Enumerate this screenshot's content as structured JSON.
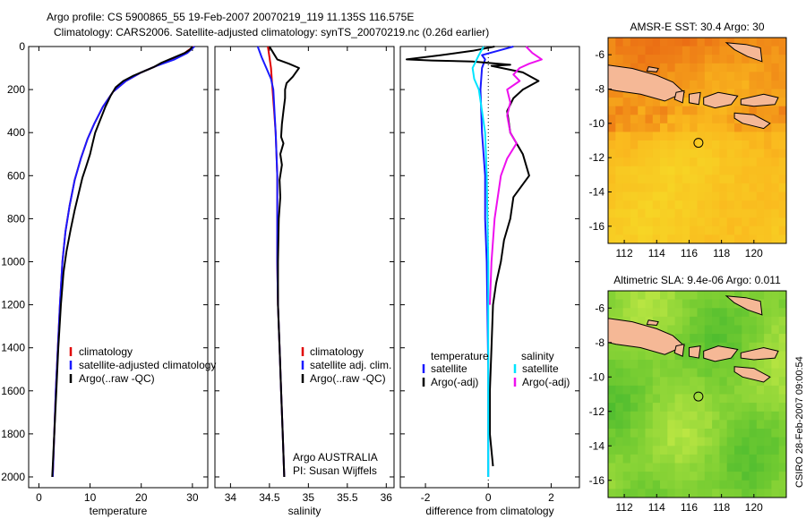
{
  "header": {
    "line1": "Argo profile: CS 5900865_55 19-Feb-2007 20070219_119 11.135S 116.575E",
    "line2": "Climatology: CARS2006. Satellite-adjusted climatology: synTS_20070219.nc (0.26d earlier)"
  },
  "side_label": "CSIRO 28-Feb-2007 09:00:54",
  "colors": {
    "red": "#e00000",
    "blue": "#1a1aff",
    "black": "#000000",
    "cyan": "#00e5ff",
    "magenta": "#ee10ee",
    "land": "#f5b896"
  },
  "chart_data": [
    {
      "type": "line",
      "id": "temperature",
      "xlabel": "temperature",
      "xlim": [
        -2,
        33
      ],
      "ylim": [
        0,
        2050
      ],
      "yticks": [
        0,
        200,
        400,
        600,
        800,
        1000,
        1200,
        1400,
        1600,
        1800,
        2000
      ],
      "xticks": [
        0,
        10,
        20,
        30
      ],
      "legend": [
        "climatology",
        "satellite-adjusted climatology",
        "Argo(..raw -QC)"
      ],
      "series": [
        {
          "name": "climatology",
          "color": "red",
          "points": [
            [
              30.2,
              0
            ],
            [
              28.5,
              30
            ],
            [
              26,
              60
            ],
            [
              23,
              90
            ],
            [
              20,
              120
            ],
            [
              17,
              160
            ],
            [
              14.5,
              210
            ],
            [
              12.5,
              280
            ],
            [
              10.8,
              360
            ],
            [
              9.5,
              430
            ],
            [
              8.2,
              520
            ],
            [
              7,
              620
            ],
            [
              6,
              740
            ],
            [
              5.2,
              860
            ],
            [
              4.6,
              1000
            ],
            [
              4.1,
              1200
            ],
            [
              3.7,
              1400
            ],
            [
              3.3,
              1600
            ],
            [
              3,
              1800
            ],
            [
              2.7,
              2000
            ]
          ]
        },
        {
          "name": "satellite-adjusted climatology",
          "color": "blue",
          "points": [
            [
              30.4,
              0
            ],
            [
              29,
              30
            ],
            [
              26.5,
              60
            ],
            [
              23,
              90
            ],
            [
              20,
              120
            ],
            [
              17,
              160
            ],
            [
              14.5,
              210
            ],
            [
              12.5,
              280
            ],
            [
              10.8,
              360
            ],
            [
              9.5,
              430
            ],
            [
              8.2,
              520
            ],
            [
              7,
              620
            ],
            [
              6,
              740
            ],
            [
              5.2,
              860
            ],
            [
              4.6,
              1000
            ],
            [
              4.1,
              1200
            ],
            [
              3.7,
              1400
            ],
            [
              3.3,
              1600
            ],
            [
              3,
              1800
            ],
            [
              2.7,
              2000
            ]
          ]
        },
        {
          "name": "Argo(..raw -QC)",
          "color": "black",
          "points": [
            [
              30,
              0
            ],
            [
              29.5,
              15
            ],
            [
              28.5,
              30
            ],
            [
              27,
              45
            ],
            [
              25.5,
              60
            ],
            [
              24,
              75
            ],
            [
              22.5,
              95
            ],
            [
              20.5,
              115
            ],
            [
              18.5,
              135
            ],
            [
              16.5,
              160
            ],
            [
              15,
              190
            ],
            [
              14,
              230
            ],
            [
              13,
              280
            ],
            [
              12,
              340
            ],
            [
              11,
              400
            ],
            [
              10.5,
              450
            ],
            [
              10,
              500
            ],
            [
              9.2,
              560
            ],
            [
              8.5,
              610
            ],
            [
              7.8,
              680
            ],
            [
              7,
              760
            ],
            [
              6.2,
              850
            ],
            [
              5.4,
              950
            ],
            [
              4.8,
              1050
            ],
            [
              4.3,
              1200
            ],
            [
              3.8,
              1400
            ],
            [
              3.4,
              1600
            ],
            [
              3,
              1800
            ],
            [
              2.7,
              1950
            ],
            [
              2.6,
              2000
            ]
          ]
        }
      ]
    },
    {
      "type": "line",
      "id": "salinity",
      "xlabel": "salinity",
      "xlim": [
        33.8,
        36.1
      ],
      "ylim": [
        0,
        2050
      ],
      "xticks": [
        34,
        34.5,
        35,
        35.5,
        36
      ],
      "legend": [
        "climatology",
        "satellite adj. clim.",
        "Argo(..raw -QC)"
      ],
      "annotation": [
        "Argo AUSTRALIA",
        "PI: Susan Wijffels"
      ],
      "series": [
        {
          "name": "climatology",
          "color": "red",
          "points": [
            [
              34.48,
              0
            ],
            [
              34.5,
              50
            ],
            [
              34.52,
              100
            ],
            [
              34.54,
              200
            ],
            [
              34.56,
              300
            ],
            [
              34.58,
              400
            ],
            [
              34.59,
              500
            ],
            [
              34.6,
              600
            ],
            [
              34.6,
              800
            ],
            [
              34.6,
              1000
            ],
            [
              34.61,
              1200
            ],
            [
              34.63,
              1400
            ],
            [
              34.65,
              1600
            ],
            [
              34.67,
              1800
            ],
            [
              34.69,
              2000
            ]
          ]
        },
        {
          "name": "satellite adj. clim.",
          "color": "blue",
          "points": [
            [
              34.35,
              0
            ],
            [
              34.4,
              50
            ],
            [
              34.46,
              100
            ],
            [
              34.52,
              150
            ],
            [
              34.55,
              200
            ],
            [
              34.58,
              400
            ],
            [
              34.59,
              500
            ],
            [
              34.6,
              600
            ],
            [
              34.6,
              800
            ],
            [
              34.6,
              1000
            ],
            [
              34.61,
              1200
            ],
            [
              34.63,
              1400
            ],
            [
              34.65,
              1600
            ],
            [
              34.67,
              1800
            ],
            [
              34.69,
              2000
            ]
          ]
        },
        {
          "name": "Argo(..raw -QC)",
          "color": "black",
          "points": [
            [
              34.5,
              0
            ],
            [
              34.55,
              30
            ],
            [
              34.6,
              60
            ],
            [
              34.75,
              80
            ],
            [
              34.88,
              100
            ],
            [
              34.8,
              140
            ],
            [
              34.72,
              170
            ],
            [
              34.7,
              200
            ],
            [
              34.7,
              240
            ],
            [
              34.68,
              300
            ],
            [
              34.66,
              360
            ],
            [
              34.65,
              420
            ],
            [
              34.68,
              450
            ],
            [
              34.64,
              500
            ],
            [
              34.66,
              550
            ],
            [
              34.63,
              620
            ],
            [
              34.64,
              700
            ],
            [
              34.62,
              800
            ],
            [
              34.61,
              1000
            ],
            [
              34.61,
              1200
            ],
            [
              34.63,
              1400
            ],
            [
              34.65,
              1600
            ],
            [
              34.67,
              1800
            ],
            [
              34.69,
              2000
            ]
          ]
        }
      ]
    },
    {
      "type": "line",
      "id": "difference",
      "xlabel": "difference from climatology",
      "xlim": [
        -2.8,
        2.9
      ],
      "ylim": [
        0,
        2050
      ],
      "xticks": [
        -2,
        0,
        2
      ],
      "legend_title": [
        "temperature",
        "salinity"
      ],
      "legend": [
        "satellite",
        "Argo(-adj)",
        "satellite",
        "Argo(-adj)"
      ],
      "series": [
        {
          "name": "temperature satellite",
          "color": "blue",
          "points": [
            [
              0.8,
              0
            ],
            [
              0.3,
              20
            ],
            [
              -0.2,
              40
            ],
            [
              -0.1,
              60
            ],
            [
              -0.2,
              100
            ],
            [
              -0.25,
              200
            ],
            [
              -0.2,
              400
            ],
            [
              -0.1,
              600
            ],
            [
              -0.1,
              800
            ],
            [
              -0.05,
              1000
            ],
            [
              0,
              1500
            ],
            [
              0,
              2000
            ]
          ]
        },
        {
          "name": "temperature Argo(-adj)",
          "color": "black",
          "points": [
            [
              0.2,
              0
            ],
            [
              -0.5,
              20
            ],
            [
              -1.5,
              40
            ],
            [
              -2.6,
              60
            ],
            [
              -1.8,
              65
            ],
            [
              -0.5,
              70
            ],
            [
              0.7,
              85
            ],
            [
              0.1,
              90
            ],
            [
              1.1,
              120
            ],
            [
              1.6,
              160
            ],
            [
              1.1,
              200
            ],
            [
              0.8,
              240
            ],
            [
              0.6,
              300
            ],
            [
              0.7,
              400
            ],
            [
              1.1,
              500
            ],
            [
              1.3,
              600
            ],
            [
              0.8,
              700
            ],
            [
              0.7,
              800
            ],
            [
              0.5,
              900
            ],
            [
              0.4,
              1000
            ],
            [
              0.25,
              1100
            ],
            [
              0.15,
              1200
            ],
            [
              0.1,
              1400
            ],
            [
              0.05,
              1600
            ],
            [
              0.05,
              1800
            ],
            [
              0.15,
              1950
            ]
          ]
        },
        {
          "name": "salinity satellite",
          "color": "cyan",
          "points": [
            [
              -0.15,
              0
            ],
            [
              -0.3,
              40
            ],
            [
              -0.5,
              100
            ],
            [
              -0.45,
              150
            ],
            [
              -0.3,
              200
            ],
            [
              -0.1,
              400
            ],
            [
              -0.05,
              600
            ],
            [
              0,
              1000
            ],
            [
              0,
              1500
            ],
            [
              0,
              2000
            ]
          ]
        },
        {
          "name": "salinity Argo(-adj)",
          "color": "magenta",
          "points": [
            [
              1.2,
              0
            ],
            [
              1.4,
              30
            ],
            [
              1.7,
              60
            ],
            [
              1.3,
              80
            ],
            [
              1,
              100
            ],
            [
              0.8,
              130
            ],
            [
              1,
              160
            ],
            [
              0.6,
              200
            ],
            [
              0.7,
              260
            ],
            [
              0.6,
              320
            ],
            [
              0.7,
              400
            ],
            [
              0.9,
              450
            ],
            [
              0.6,
              520
            ],
            [
              0.4,
              600
            ],
            [
              0.3,
              700
            ],
            [
              0.2,
              800
            ],
            [
              0.1,
              1000
            ],
            [
              0.05,
              1200
            ]
          ]
        }
      ]
    },
    {
      "type": "heatmap",
      "id": "sst-map",
      "title": "AMSR-E SST: 30.4 Argo: 30",
      "xlim": [
        111,
        122
      ],
      "ylim": [
        -17,
        -5
      ],
      "xticks": [
        112,
        114,
        116,
        118,
        120
      ],
      "yticks": [
        -6,
        -8,
        -10,
        -12,
        -14,
        -16
      ],
      "marker": [
        116.575,
        -11.135
      ]
    },
    {
      "type": "heatmap",
      "id": "sla-map",
      "title": "Altimetric SLA: 9.4e-06 Argo: 0.011",
      "xlim": [
        111,
        122
      ],
      "ylim": [
        -17,
        -5
      ],
      "xticks": [
        112,
        114,
        116,
        118,
        120
      ],
      "yticks": [
        -6,
        -8,
        -10,
        -12,
        -14,
        -16
      ],
      "marker": [
        116.575,
        -11.135
      ]
    }
  ]
}
